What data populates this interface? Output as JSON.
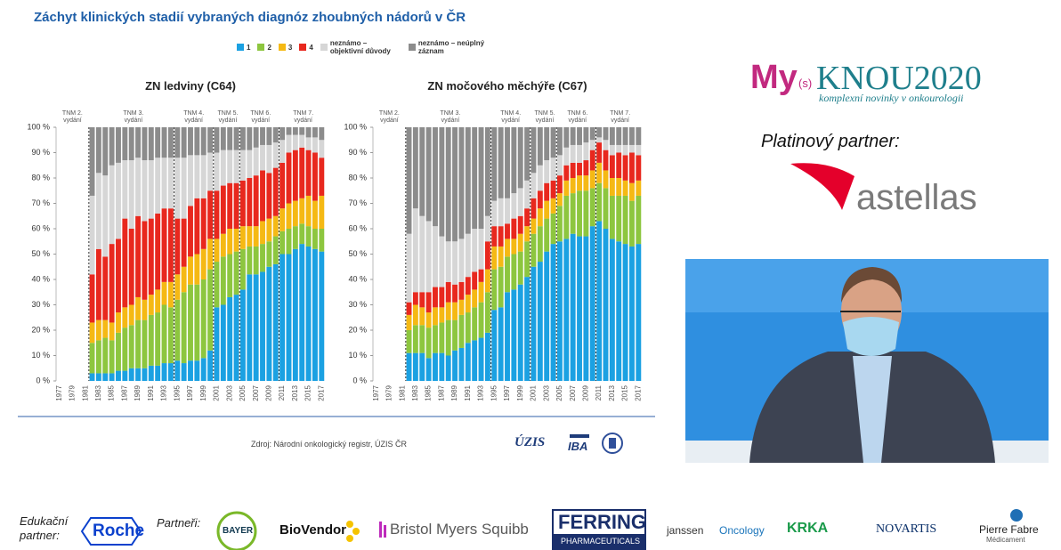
{
  "slide": {
    "title": "Záchyt klinických stadií vybraných diagnóz zhoubných nádorů v ČR",
    "source": "Zdroj: Národní onkologický registr, ÚZIS ČR",
    "logo_uzis": "ÚZIS",
    "logo_iba": "IBA"
  },
  "chart_data": [
    {
      "type": "bar",
      "stacked": true,
      "title": "ZN ledviny (C64)",
      "categories": [
        "1977",
        null,
        "1979",
        null,
        "1981",
        null,
        "1983",
        null,
        "1985",
        null,
        "1987",
        null,
        "1989",
        null,
        "1991",
        null,
        "1993",
        null,
        "1995",
        null,
        "1997",
        null,
        "1999",
        null,
        "2001",
        null,
        "2003",
        null,
        "2005",
        null,
        "2007",
        null,
        "2009",
        null,
        "2011",
        null,
        "2013",
        null,
        "2015",
        null,
        "2017"
      ],
      "ylim": [
        0,
        100
      ],
      "yticks": [
        {
          "value": 0,
          "label": "0 %"
        },
        {
          "value": 10,
          "label": "10 %"
        },
        {
          "value": 20,
          "label": "20 %"
        },
        {
          "value": 30,
          "label": "30 %"
        },
        {
          "value": 40,
          "label": "40 %"
        },
        {
          "value": 50,
          "label": "50 %"
        },
        {
          "value": 60,
          "label": "60 %"
        },
        {
          "value": 70,
          "label": "70 %"
        },
        {
          "value": 80,
          "label": "80 %"
        },
        {
          "value": 90,
          "label": "90 %"
        },
        {
          "value": 100,
          "label": "100 %"
        }
      ],
      "annotations": [
        "TNM 2. vydání",
        "TNM 3. vydání",
        "TNM 4. vydání",
        "TNM 5. vydání",
        "TNM 6. vydání",
        "TNM 7. vydání"
      ],
      "series": [
        {
          "name": "1",
          "color": "#1ba1e2",
          "values": [
            null,
            null,
            null,
            null,
            null,
            3,
            3,
            3,
            3,
            4,
            4,
            5,
            5,
            5,
            6,
            6,
            7,
            7,
            8,
            7,
            8,
            8,
            9,
            12,
            29,
            30,
            33,
            34,
            36,
            42,
            42,
            43,
            45,
            46,
            50,
            50,
            52,
            54,
            53,
            52,
            51
          ]
        },
        {
          "name": "2",
          "color": "#8dc63f",
          "values": [
            null,
            null,
            null,
            null,
            null,
            12,
            13,
            14,
            13,
            15,
            17,
            17,
            19,
            19,
            20,
            21,
            23,
            22,
            24,
            28,
            30,
            30,
            31,
            32,
            18,
            19,
            17,
            17,
            16,
            11,
            11,
            11,
            10,
            11,
            9,
            10,
            9,
            8,
            8,
            8,
            9
          ]
        },
        {
          "name": "3",
          "color": "#f5b914",
          "values": [
            null,
            null,
            null,
            null,
            null,
            8,
            8,
            7,
            7,
            8,
            8,
            8,
            9,
            8,
            8,
            9,
            9,
            10,
            10,
            10,
            11,
            12,
            12,
            12,
            9,
            9,
            10,
            9,
            9,
            8,
            8,
            9,
            9,
            8,
            9,
            10,
            10,
            10,
            12,
            11,
            13
          ]
        },
        {
          "name": "4",
          "color": "#e8281e",
          "values": [
            null,
            null,
            null,
            null,
            null,
            19,
            28,
            25,
            31,
            29,
            35,
            30,
            32,
            31,
            30,
            30,
            29,
            29,
            22,
            19,
            20,
            22,
            20,
            19,
            19,
            19,
            18,
            18,
            18,
            19,
            20,
            20,
            18,
            19,
            18,
            20,
            20,
            20,
            18,
            19,
            15
          ]
        },
        {
          "name": "neznámo – objektivní důvody",
          "color": "#d6d6d6",
          "values": [
            null,
            null,
            null,
            null,
            null,
            31,
            30,
            32,
            31,
            30,
            23,
            27,
            23,
            24,
            23,
            22,
            20,
            20,
            24,
            24,
            20,
            17,
            17,
            15,
            15,
            14,
            13,
            13,
            12,
            11,
            11,
            10,
            11,
            10,
            9,
            7,
            6,
            5,
            5,
            6,
            7
          ]
        },
        {
          "name": "neznámo – neúplný záznam",
          "color": "#8c8c8c",
          "values": [
            null,
            null,
            null,
            null,
            null,
            27,
            18,
            19,
            15,
            14,
            13,
            13,
            12,
            13,
            13,
            12,
            12,
            12,
            12,
            12,
            11,
            11,
            11,
            10,
            10,
            9,
            9,
            9,
            9,
            9,
            8,
            7,
            7,
            6,
            5,
            3,
            3,
            3,
            4,
            4,
            5
          ]
        }
      ]
    },
    {
      "type": "bar",
      "stacked": true,
      "title": "ZN močového měchýře (C67)",
      "categories": [
        "1977",
        null,
        "1979",
        null,
        "1981",
        null,
        "1983",
        null,
        "1985",
        null,
        "1987",
        null,
        "1989",
        null,
        "1991",
        null,
        "1993",
        null,
        "1995",
        null,
        "1997",
        null,
        "1999",
        null,
        "2001",
        null,
        "2003",
        null,
        "2005",
        null,
        "2007",
        null,
        "2009",
        null,
        "2011",
        null,
        "2013",
        null,
        "2015",
        null,
        "2017"
      ],
      "ylim": [
        0,
        100
      ],
      "yticks": [
        {
          "value": 0,
          "label": "0 %"
        },
        {
          "value": 10,
          "label": "10 %"
        },
        {
          "value": 20,
          "label": "20 %"
        },
        {
          "value": 30,
          "label": "30 %"
        },
        {
          "value": 40,
          "label": "40 %"
        },
        {
          "value": 50,
          "label": "50 %"
        },
        {
          "value": 60,
          "label": "60 %"
        },
        {
          "value": 70,
          "label": "70 %"
        },
        {
          "value": 80,
          "label": "80 %"
        },
        {
          "value": 90,
          "label": "90 %"
        },
        {
          "value": 100,
          "label": "100 %"
        }
      ],
      "annotations": [
        "TNM 2. vydání",
        "TNM 3. vydání",
        "TNM 4. vydání",
        "TNM 5. vydání",
        "TNM 6. vydání",
        "TNM 7. vydání"
      ],
      "series": [
        {
          "color": "#1ba1e2",
          "values": [
            null,
            null,
            null,
            null,
            null,
            11,
            11,
            11,
            9,
            11,
            11,
            10,
            12,
            13,
            15,
            16,
            17,
            19,
            28,
            29,
            35,
            36,
            38,
            41,
            45,
            47,
            51,
            54,
            55,
            56,
            58,
            57,
            57,
            61,
            63,
            60,
            56,
            55,
            54,
            53,
            54
          ]
        },
        {
          "color": "#8dc63f",
          "values": [
            null,
            null,
            null,
            null,
            null,
            9,
            11,
            11,
            12,
            11,
            12,
            14,
            12,
            13,
            12,
            13,
            14,
            16,
            16,
            16,
            14,
            14,
            13,
            14,
            13,
            14,
            13,
            12,
            14,
            17,
            16,
            18,
            18,
            15,
            15,
            16,
            17,
            18,
            19,
            18,
            19
          ]
        },
        {
          "color": "#f5b914",
          "values": [
            null,
            null,
            null,
            null,
            null,
            6,
            8,
            7,
            6,
            7,
            6,
            7,
            7,
            6,
            7,
            7,
            8,
            9,
            9,
            8,
            7,
            6,
            7,
            6,
            6,
            7,
            7,
            6,
            5,
            6,
            6,
            6,
            6,
            7,
            8,
            7,
            7,
            7,
            6,
            7,
            6
          ]
        },
        {
          "color": "#e8281e",
          "values": [
            null,
            null,
            null,
            null,
            null,
            5,
            5,
            6,
            8,
            8,
            8,
            8,
            7,
            7,
            7,
            7,
            5,
            11,
            8,
            8,
            6,
            8,
            7,
            7,
            8,
            7,
            7,
            7,
            7,
            6,
            6,
            5,
            6,
            8,
            8,
            8,
            9,
            10,
            10,
            12,
            10
          ]
        },
        {
          "color": "#d6d6d6",
          "values": [
            null,
            null,
            null,
            null,
            null,
            27,
            33,
            30,
            28,
            24,
            20,
            16,
            17,
            17,
            17,
            17,
            16,
            10,
            10,
            11,
            10,
            10,
            11,
            11,
            10,
            10,
            9,
            9,
            8,
            7,
            7,
            7,
            7,
            4,
            2,
            4,
            4,
            3,
            4,
            3,
            4
          ]
        },
        {
          "color": "#8c8c8c",
          "values": [
            null,
            null,
            null,
            null,
            null,
            42,
            32,
            35,
            37,
            39,
            43,
            45,
            45,
            44,
            42,
            40,
            40,
            35,
            29,
            28,
            28,
            26,
            24,
            21,
            18,
            15,
            13,
            12,
            11,
            8,
            7,
            7,
            6,
            5,
            4,
            5,
            7,
            7,
            7,
            7,
            7
          ]
        }
      ]
    }
  ],
  "conference": {
    "brand_my": "My",
    "brand_s": "(s)",
    "brand_knou": "KNOU2020",
    "tagline": "komplexní novinky v onkourologii",
    "platinum_label": "Platinový partner:",
    "platinum_partner": "astellas"
  },
  "footer": {
    "educational_label": "Edukační partner:",
    "educational_partner": "Roche",
    "partners_label": "Partneři:",
    "bayer": "BAYER",
    "biovendor": "BioVendor",
    "bms": "Bristol Myers Squibb",
    "ferring": "FERRING",
    "ferring_sub": "PHARMACEUTICALS",
    "janssen": "janssen",
    "oncology": "Oncology",
    "krka": "KRKA",
    "novartis": "NOVARTIS",
    "pierre_fabre": "Pierre Fabre",
    "pierre_fabre_sub": "Médicament"
  }
}
